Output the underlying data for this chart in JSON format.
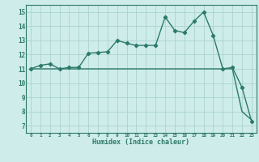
{
  "title": "",
  "xlabel": "Humidex (Indice chaleur)",
  "bg_color": "#ceecea",
  "grid_color": "#aad4d0",
  "line_color": "#2d7a6a",
  "xlim": [
    -0.5,
    23.5
  ],
  "ylim": [
    6.5,
    15.5
  ],
  "xticks": [
    0,
    1,
    2,
    3,
    4,
    5,
    6,
    7,
    8,
    9,
    10,
    11,
    12,
    13,
    14,
    15,
    16,
    17,
    18,
    19,
    20,
    21,
    22,
    23
  ],
  "yticks": [
    7,
    8,
    9,
    10,
    11,
    12,
    13,
    14,
    15
  ],
  "humidex_x": [
    0,
    1,
    2,
    3,
    4,
    5,
    6,
    7,
    8,
    9,
    10,
    11,
    12,
    13,
    14,
    15,
    16,
    17,
    18,
    19,
    20,
    21,
    22,
    23
  ],
  "humidex_y": [
    11.0,
    11.25,
    11.35,
    11.0,
    11.1,
    11.1,
    12.1,
    12.15,
    12.2,
    13.0,
    12.8,
    12.65,
    12.65,
    12.65,
    14.65,
    13.7,
    13.55,
    14.35,
    15.0,
    13.35,
    11.0,
    11.1,
    9.7,
    7.3
  ],
  "flat_x": [
    0,
    1,
    2,
    3,
    4,
    5,
    6,
    7,
    8,
    9,
    10,
    11,
    12,
    13,
    14,
    15,
    16,
    17,
    18,
    19,
    20,
    21,
    22,
    23
  ],
  "flat_y": [
    11.0,
    11.0,
    11.0,
    11.0,
    11.0,
    11.0,
    11.0,
    11.0,
    11.0,
    11.0,
    11.0,
    11.0,
    11.0,
    11.0,
    11.0,
    11.0,
    11.0,
    11.0,
    11.0,
    11.0,
    11.0,
    11.0,
    8.0,
    7.4
  ],
  "marker_style": "D",
  "marker_size": 2.2,
  "linewidth": 1.0
}
